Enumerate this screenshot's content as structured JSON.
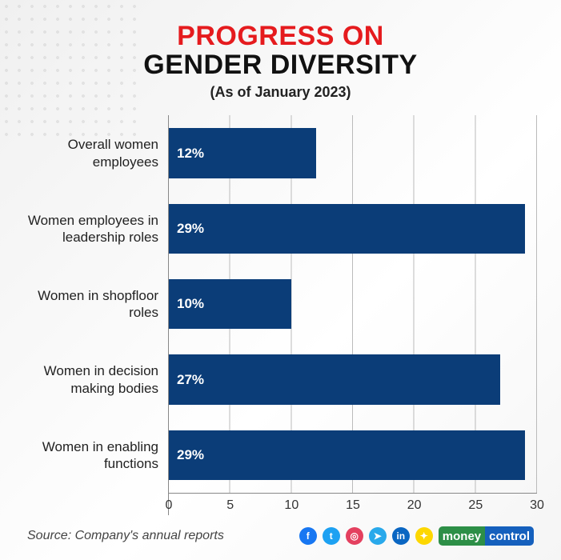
{
  "title": {
    "line1": "PROGRESS ON",
    "line2": "GENDER DIVERSITY",
    "line1_color": "#e51b1e",
    "line2_color": "#111111",
    "subtitle": "(As of January 2023)"
  },
  "chart": {
    "type": "bar-horizontal",
    "xlim": [
      0,
      30
    ],
    "xtick_step": 5,
    "xticks": [
      0,
      5,
      10,
      15,
      20,
      25,
      30
    ],
    "bar_color": "#0b3d78",
    "grid_color": "#bbbbbb",
    "axis_color": "#888888",
    "value_label_color": "#ffffff",
    "background_color": "transparent",
    "label_fontsize": 17,
    "tick_fontsize": 16,
    "bars": [
      {
        "label": "Overall women employees",
        "value": 12,
        "value_label": "12%"
      },
      {
        "label": "Women employees in leadership roles",
        "value": 29,
        "value_label": "29%"
      },
      {
        "label": "Women in shopfloor roles",
        "value": 10,
        "value_label": "10%"
      },
      {
        "label": "Women in decision making bodies",
        "value": 27,
        "value_label": "27%"
      },
      {
        "label": "Women in enabling functions",
        "value": 29,
        "value_label": "29%"
      }
    ]
  },
  "footer": {
    "source": "Source: Company's annual reports",
    "social_icons": [
      {
        "name": "facebook-icon",
        "glyph": "f",
        "bg": "#1877f2"
      },
      {
        "name": "twitter-icon",
        "glyph": "t",
        "bg": "#1da1f2"
      },
      {
        "name": "instagram-icon",
        "glyph": "◎",
        "bg": "#e4405f"
      },
      {
        "name": "telegram-icon",
        "glyph": "➤",
        "bg": "#29a9eb"
      },
      {
        "name": "linkedin-icon",
        "glyph": "in",
        "bg": "#0a66c2"
      },
      {
        "name": "snapchat-icon",
        "glyph": "✦",
        "bg": "#fdd700"
      }
    ],
    "brand": {
      "money": "money",
      "control": "control"
    }
  }
}
